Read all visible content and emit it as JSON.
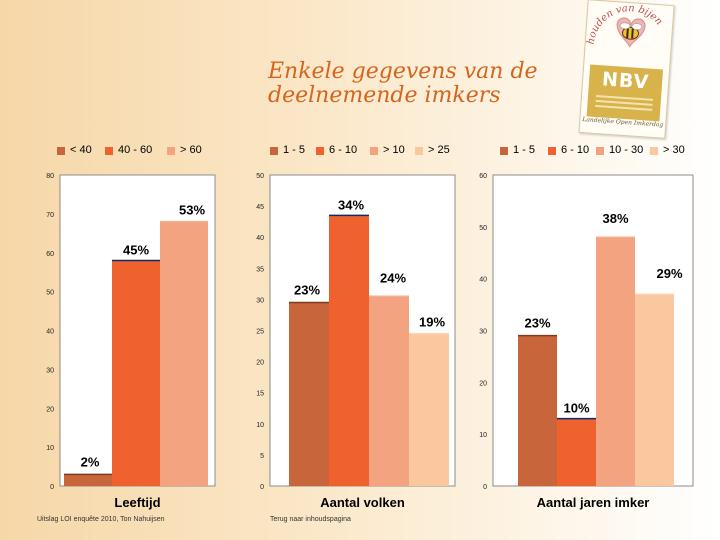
{
  "title": "Enkele gegevens van de deelnemende imkers",
  "logo": {
    "text": "houden van bijen",
    "brand": "NBV",
    "subtitle": "Landelijke Open Imkerdag"
  },
  "colors": {
    "text": "#000000",
    "title": "#d4651f",
    "series": [
      "#c9653a",
      "#f0622d",
      "#f4a380",
      "#fac79f"
    ],
    "bar_outline": [
      "#7a3d22",
      "#0d2a6b",
      "#f2b08f",
      "#fbd4b3"
    ]
  },
  "footer": {
    "source": "Uitslag LOI enquête 2010, Ton Nahuijsen",
    "link": "Terug naar inhoudspagina"
  },
  "chart_data": [
    {
      "type": "bar",
      "xlabel": "Leeftijd",
      "categories": [
        "< 40",
        "40 - 60",
        "> 60"
      ],
      "values": [
        3,
        58,
        68
      ],
      "data_labels": [
        "2%",
        "45%",
        "53%"
      ],
      "legend": [
        "< 40",
        "40 - 60",
        "> 60"
      ],
      "legend_position": "top",
      "ylim": [
        0,
        80
      ],
      "yticks": [
        "0",
        "10",
        "20",
        "30",
        "40",
        "50",
        "60",
        "70",
        "80"
      ],
      "grid": false
    },
    {
      "type": "bar",
      "xlabel": "Aantal volken",
      "categories": [
        "1 - 5",
        "6 - 10",
        "> 10",
        "> 25"
      ],
      "values": [
        29.5,
        43.5,
        30.5,
        24.5
      ],
      "data_labels": [
        "23%",
        "34%",
        "24%",
        "19%"
      ],
      "legend": [
        "1 - 5",
        "6 - 10",
        "> 10",
        "> 25"
      ],
      "legend_position": "top",
      "ylim": [
        0,
        50
      ],
      "yticks": [
        "0",
        "5",
        "10",
        "15",
        "20",
        "25",
        "30",
        "35",
        "40",
        "45",
        "50"
      ],
      "grid": false
    },
    {
      "type": "bar",
      "xlabel": "Aantal jaren imker",
      "categories": [
        "1 - 5",
        "6 - 10",
        "10 - 30",
        "> 30"
      ],
      "values": [
        29,
        13,
        48,
        37
      ],
      "data_labels": [
        "23%",
        "10%",
        "38%",
        "29%"
      ],
      "legend": [
        "1 - 5",
        "6 - 10",
        "10 - 30",
        "> 30"
      ],
      "legend_position": "top",
      "ylim": [
        0,
        60
      ],
      "yticks": [
        "0",
        "10",
        "20",
        "30",
        "40",
        "50",
        "60"
      ],
      "grid": false
    }
  ]
}
